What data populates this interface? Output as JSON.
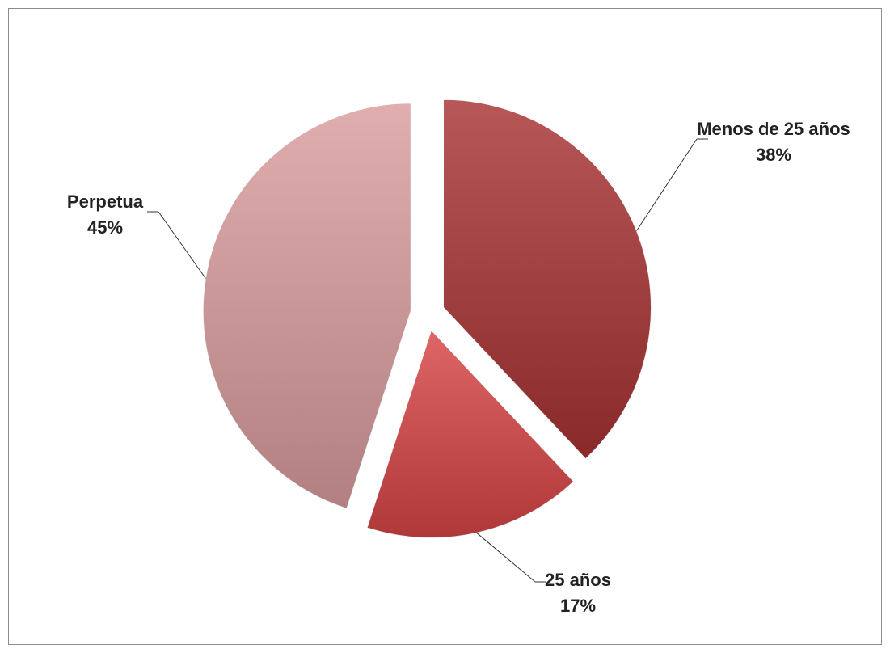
{
  "chart_data": {
    "type": "pie",
    "categories": [
      "Menos de 25 años",
      "25 años",
      "Perpetua"
    ],
    "values": [
      38,
      17,
      45
    ],
    "value_labels": [
      "38%",
      "17%",
      "45%"
    ],
    "colors": [
      "#a83232",
      "#d64444",
      "#d99c9c"
    ]
  }
}
